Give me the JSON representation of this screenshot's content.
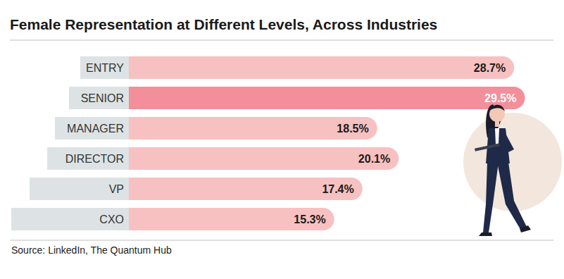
{
  "chart_data": {
    "type": "bar",
    "orientation": "horizontal",
    "title": "Female Representation at Different Levels, Across Industries",
    "categories": [
      "ENTRY",
      "SENIOR",
      "MANAGER",
      "DIRECTOR",
      "VP",
      "CXO"
    ],
    "values": [
      28.7,
      29.5,
      18.5,
      20.1,
      17.4,
      15.3
    ],
    "value_labels": [
      "28.7%",
      "29.5%",
      "18.5%",
      "20.1%",
      "17.4%",
      "15.3%"
    ],
    "colors": [
      "#f7c1c1",
      "#f28f9b",
      "#f7c1c1",
      "#f7c1c1",
      "#f7c1c1",
      "#f7c1c1"
    ],
    "xlim": [
      0,
      30
    ],
    "data_labels": true,
    "tick_labels": false,
    "grid": false,
    "annotations": [
      "Source: LinkedIn, The Quantum Hub"
    ]
  }
}
